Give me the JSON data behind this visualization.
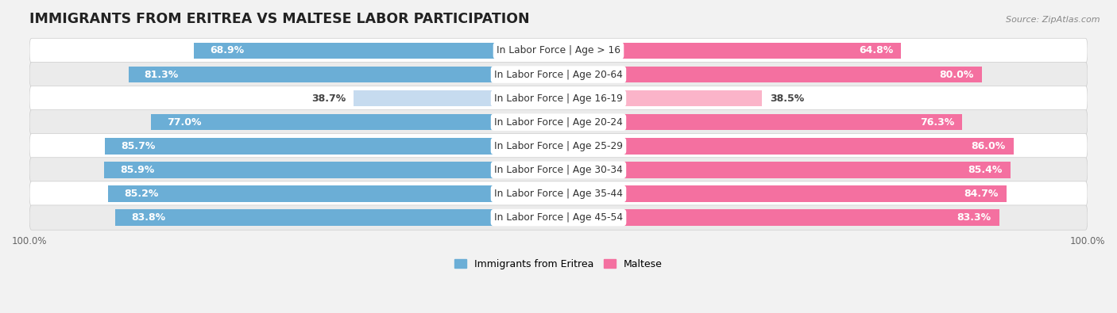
{
  "title": "IMMIGRANTS FROM ERITREA VS MALTESE LABOR PARTICIPATION",
  "source": "Source: ZipAtlas.com",
  "categories": [
    "In Labor Force | Age > 16",
    "In Labor Force | Age 20-64",
    "In Labor Force | Age 16-19",
    "In Labor Force | Age 20-24",
    "In Labor Force | Age 25-29",
    "In Labor Force | Age 30-34",
    "In Labor Force | Age 35-44",
    "In Labor Force | Age 45-54"
  ],
  "eritrea_values": [
    68.9,
    81.3,
    38.7,
    77.0,
    85.7,
    85.9,
    85.2,
    83.8
  ],
  "maltese_values": [
    64.8,
    80.0,
    38.5,
    76.3,
    86.0,
    85.4,
    84.7,
    83.3
  ],
  "eritrea_color": "#6baed6",
  "eritrea_color_light": "#c6dbef",
  "maltese_color": "#f470a0",
  "maltese_color_light": "#fbb4c9",
  "bar_height": 0.68,
  "background_color": "#f2f2f2",
  "row_colors": [
    "#ffffff",
    "#ebebeb"
  ],
  "label_fontsize": 9.0,
  "cat_fontsize": 8.8,
  "title_fontsize": 12.5,
  "max_value": 100.0,
  "legend_labels": [
    "Immigrants from Eritrea",
    "Maltese"
  ],
  "low_threshold": 50
}
